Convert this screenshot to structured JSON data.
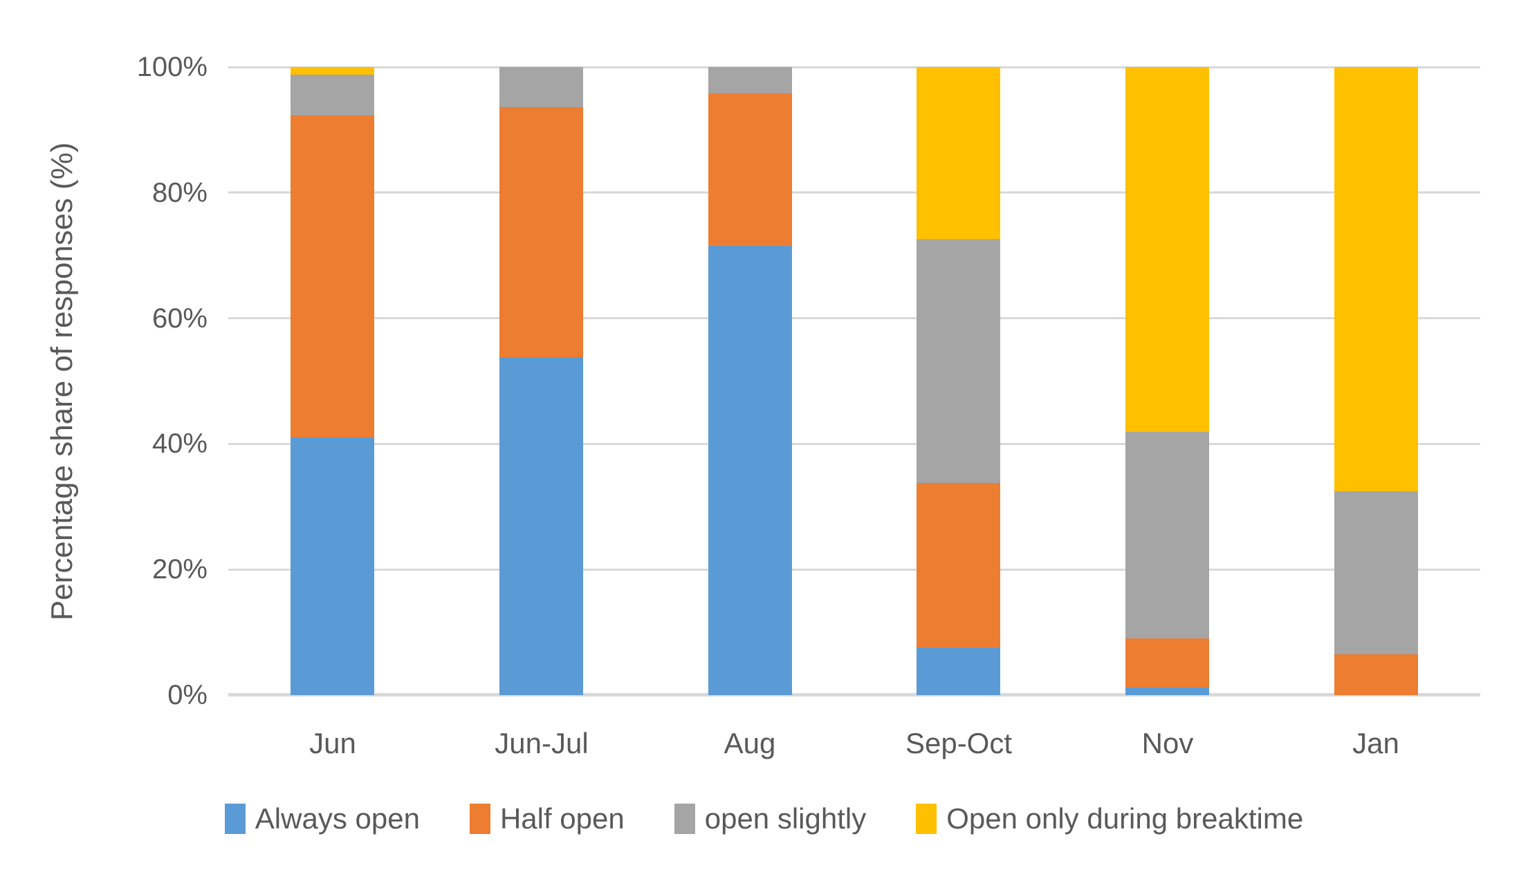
{
  "chart_data": {
    "type": "bar",
    "stacked": true,
    "categories": [
      "Jun",
      "Jun-Jul",
      "Aug",
      "Sep-Oct",
      "Nov",
      "Jan"
    ],
    "series": [
      {
        "name": "Always open",
        "color": "#5B9BD5",
        "values": [
          41.0,
          53.8,
          71.5,
          7.6,
          1.2,
          0
        ]
      },
      {
        "name": "Half open",
        "color": "#ED7D31",
        "values": [
          51.3,
          39.8,
          24.3,
          26.2,
          7.8,
          6.5
        ]
      },
      {
        "name": "open slightly",
        "color": "#A5A5A5",
        "values": [
          6.5,
          6.4,
          4.2,
          38.8,
          32.9,
          26.0
        ]
      },
      {
        "name": "Open only during breaktime",
        "color": "#FFC000",
        "values": [
          1.2,
          0,
          0,
          27.4,
          58.1,
          67.5
        ]
      }
    ],
    "title": "",
    "xlabel": "",
    "ylabel": "Percentage share of responses (%)",
    "yticks": [
      "100%",
      "80%",
      "60%",
      "40%",
      "20%",
      "0%"
    ],
    "ylim": [
      0,
      100
    ],
    "grid": true,
    "legend_position": "bottom",
    "gridline_color": "#D9D9D9",
    "text_color": "#595959"
  }
}
